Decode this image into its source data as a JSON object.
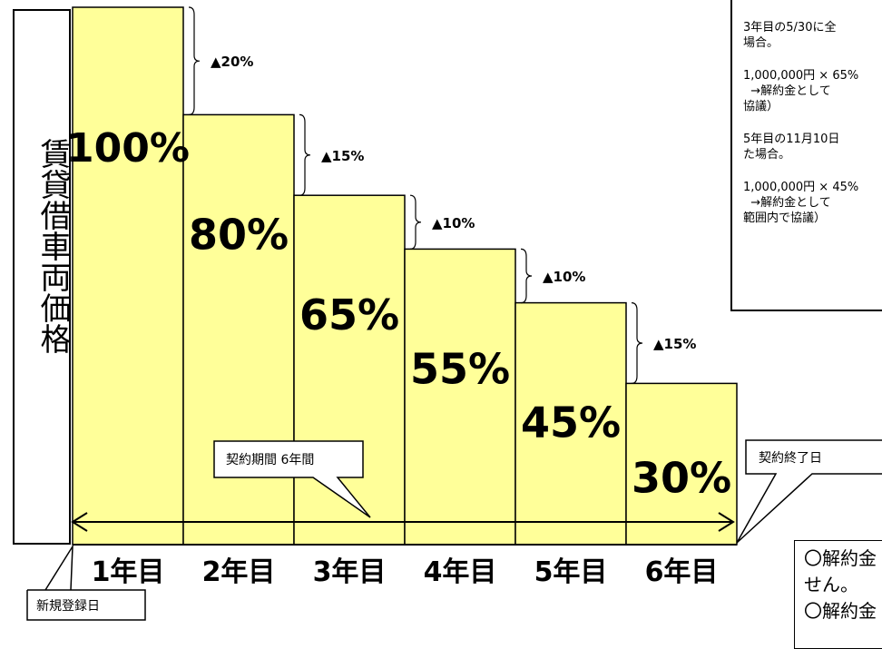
{
  "vertical_label": "賃貸借車両価格",
  "chart_data": {
    "type": "bar",
    "categories": [
      "1年目",
      "2年目",
      "3年目",
      "4年目",
      "5年目",
      "6年目"
    ],
    "values": [
      100,
      80,
      65,
      55,
      45,
      30
    ],
    "value_labels": [
      "100%",
      "80%",
      "65%",
      "55%",
      "45%",
      "30%"
    ],
    "decrements": [
      "▲20%",
      "▲15%",
      "▲10%",
      "▲10%",
      "▲15%"
    ],
    "ylim": [
      0,
      100
    ],
    "bar_color": "#ffff99",
    "xlabel": "",
    "ylabel": "賃貸借車両価格"
  },
  "callouts": {
    "period": "契約期間  6年間",
    "end": "契約終了日",
    "start": "新規登録日"
  },
  "note": {
    "p1": "3年目の5/30に全\n場合。",
    "p2": "1,000,000円 × 65%\n  →解約金として\n協議）",
    "p3": "5年目の11月10日\nた場合。",
    "p4": "1,000,000円 × 45%\n  →解約金として\n範囲内で協議）"
  },
  "footnote": {
    "line1": "〇解約金",
    "line2": "せん。",
    "line3": "〇解約金"
  }
}
